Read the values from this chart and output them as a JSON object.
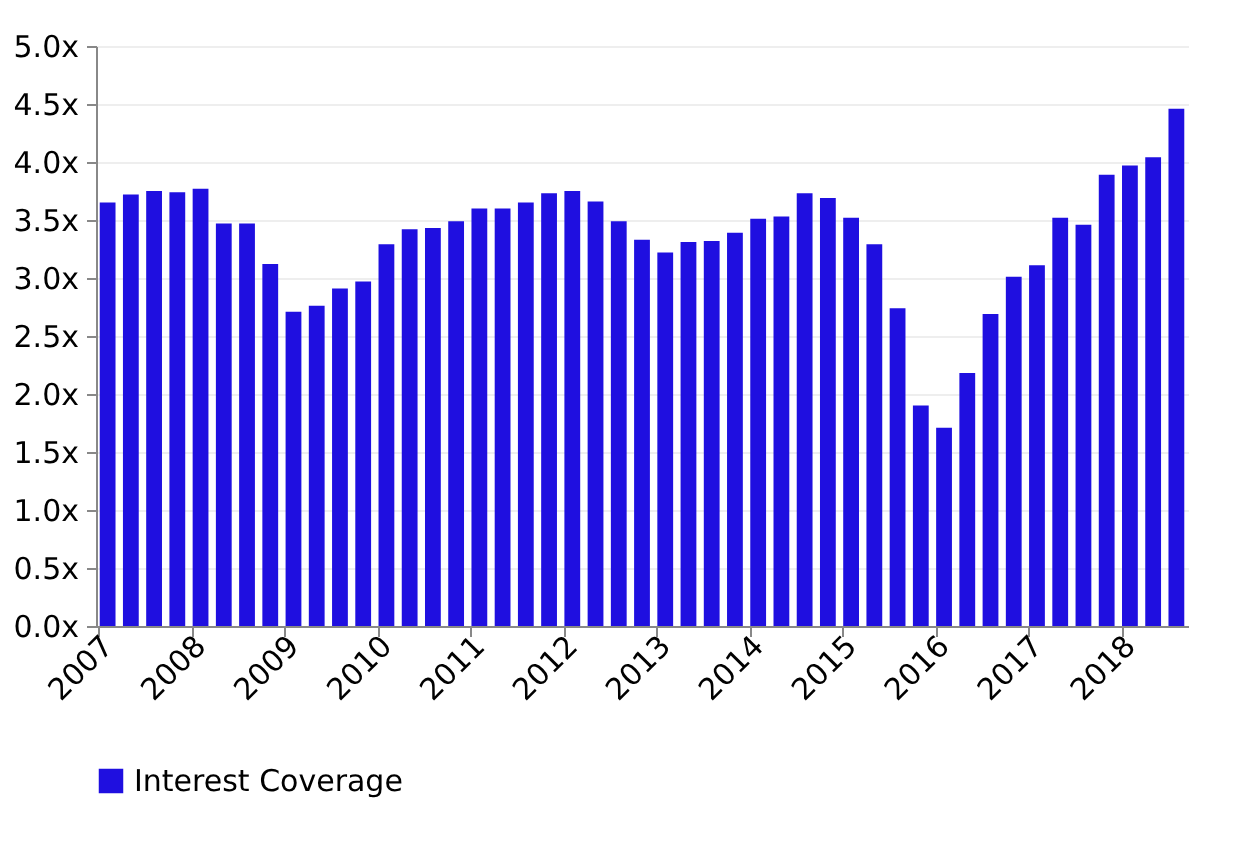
{
  "chart_data": {
    "type": "bar",
    "categories": [
      "2007",
      null,
      null,
      null,
      "2008",
      null,
      null,
      null,
      "2009",
      null,
      null,
      null,
      "2010",
      null,
      null,
      null,
      "2011",
      null,
      null,
      null,
      "2012",
      null,
      null,
      null,
      "2013",
      null,
      null,
      null,
      "2014",
      null,
      null,
      null,
      "2015",
      null,
      null,
      null,
      "2016",
      null,
      null,
      null,
      "2017",
      null,
      null,
      null,
      "2018",
      null,
      null
    ],
    "series": [
      {
        "name": "Interest Coverage",
        "color": "#1f0fe0",
        "values": [
          3.65,
          3.72,
          3.75,
          3.74,
          3.77,
          3.47,
          3.47,
          3.12,
          2.71,
          2.76,
          2.91,
          2.97,
          3.29,
          3.42,
          3.43,
          3.49,
          3.6,
          3.6,
          3.65,
          3.73,
          3.75,
          3.66,
          3.49,
          3.33,
          3.22,
          3.31,
          3.32,
          3.39,
          3.51,
          3.53,
          3.73,
          3.69,
          3.52,
          3.29,
          2.74,
          1.9,
          1.71,
          2.18,
          2.69,
          3.01,
          3.11,
          3.52,
          3.46,
          3.89,
          3.97,
          4.04,
          4.46
        ]
      }
    ],
    "ylim": [
      0,
      5
    ],
    "yticks": [
      {
        "value": 0,
        "label": "0.0x"
      },
      {
        "value": 0.5,
        "label": "0.5x"
      },
      {
        "value": 1,
        "label": "1.0x"
      },
      {
        "value": 1.5,
        "label": "1.5x"
      },
      {
        "value": 2,
        "label": "2.0x"
      },
      {
        "value": 2.5,
        "label": "2.5x"
      },
      {
        "value": 3,
        "label": "3.0x"
      },
      {
        "value": 3.5,
        "label": "3.5x"
      },
      {
        "value": 4,
        "label": "4.0x"
      },
      {
        "value": 4.5,
        "label": "4.5x"
      },
      {
        "value": 5,
        "label": "5.0x"
      }
    ],
    "grid": "y",
    "legend": "bottom"
  }
}
